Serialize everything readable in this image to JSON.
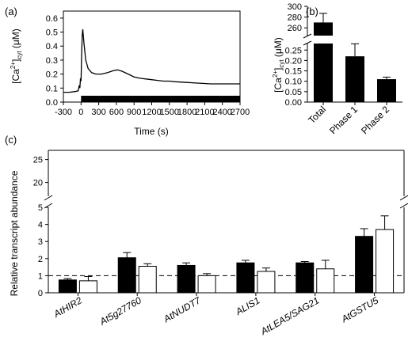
{
  "panels": {
    "a": "(a)",
    "b": "(b)",
    "c": "(c)"
  },
  "chart_data": [
    {
      "panel": "a",
      "type": "line",
      "xlabel": "Time (s)",
      "ylabel_main": "[Ca",
      "ylabel_sup": "2+",
      "ylabel_close": "]",
      "ylabel_sub": "cyt",
      "ylabel_unit": " (μM)",
      "xlim": [
        -300,
        2700
      ],
      "ylim": [
        0,
        0.65
      ],
      "xticks": [
        -300,
        0,
        300,
        600,
        900,
        1200,
        1500,
        1800,
        2100,
        2400,
        2700
      ],
      "yticks": [
        0,
        0.1,
        0.2,
        0.3,
        0.4,
        0.5,
        0.6
      ],
      "ytick_labels": [
        "0.0",
        "0.1",
        "0.2",
        "0.3",
        "0.4",
        "0.5",
        "0.6"
      ],
      "stimulus_bar": [
        0,
        2700
      ],
      "series": [
        {
          "x": [
            -300,
            -200,
            -100,
            -50,
            -30,
            -20,
            -10,
            0,
            10,
            20,
            30,
            50,
            80,
            120,
            180,
            250,
            350,
            450,
            550,
            620,
            700,
            800,
            900,
            1000,
            1100,
            1200,
            1300,
            1400,
            1500,
            1600,
            1800,
            2000,
            2200,
            2400,
            2600,
            2700
          ],
          "y": [
            0.07,
            0.07,
            0.075,
            0.08,
            0.12,
            0.1,
            0.17,
            0.15,
            0.33,
            0.48,
            0.52,
            0.42,
            0.3,
            0.24,
            0.21,
            0.2,
            0.2,
            0.21,
            0.225,
            0.23,
            0.22,
            0.2,
            0.18,
            0.17,
            0.165,
            0.16,
            0.155,
            0.15,
            0.15,
            0.145,
            0.14,
            0.135,
            0.13,
            0.13,
            0.13,
            0.13
          ]
        }
      ]
    },
    {
      "panel": "b",
      "type": "bar",
      "categories": [
        "Total",
        "Phase 1",
        "Phase 2"
      ],
      "values": [
        270,
        0.22,
        0.11
      ],
      "errors": [
        17,
        0.06,
        0.01
      ],
      "ylabel_main": "[Ca",
      "ylabel_sup": "2+",
      "ylabel_close": "]",
      "ylabel_sub": "cyt",
      "ylabel_unit": " (μM)",
      "upper_range": [
        250,
        300
      ],
      "upper_ticks": [
        260,
        280,
        300
      ],
      "lower_range": [
        0,
        0.27
      ],
      "lower_ticks": [
        0,
        0.05,
        0.1,
        0.15,
        0.2,
        0.25
      ],
      "lower_tick_labels": [
        "0.00",
        "0.05",
        "0.10",
        "0.15",
        "0.20",
        "0.25"
      ]
    },
    {
      "panel": "c",
      "type": "bar",
      "categories": [
        "AtHIR2",
        "At5g27760",
        "AtNUDT7",
        "ALIS1",
        "AtLEA5/SAG21",
        "AtGSTU5"
      ],
      "series": [
        {
          "fill": "#000000",
          "values": [
            0.75,
            2.05,
            1.6,
            1.75,
            1.75,
            3.3
          ],
          "errors": [
            0.08,
            0.3,
            0.15,
            0.15,
            0.08,
            0.45
          ]
        },
        {
          "fill": "#ffffff",
          "values": [
            0.7,
            1.55,
            1.0,
            1.25,
            1.4,
            3.7
          ],
          "errors": [
            0.25,
            0.15,
            0.12,
            0.2,
            0.5,
            0.8
          ]
        }
      ],
      "ylabel": "Relative transcript abundance",
      "lower_range": [
        0,
        5
      ],
      "lower_ticks": [
        0,
        1,
        2,
        3,
        4,
        5
      ],
      "upper_range": [
        17,
        27
      ],
      "upper_ticks": [
        20,
        25
      ],
      "reference_line": 1
    }
  ]
}
